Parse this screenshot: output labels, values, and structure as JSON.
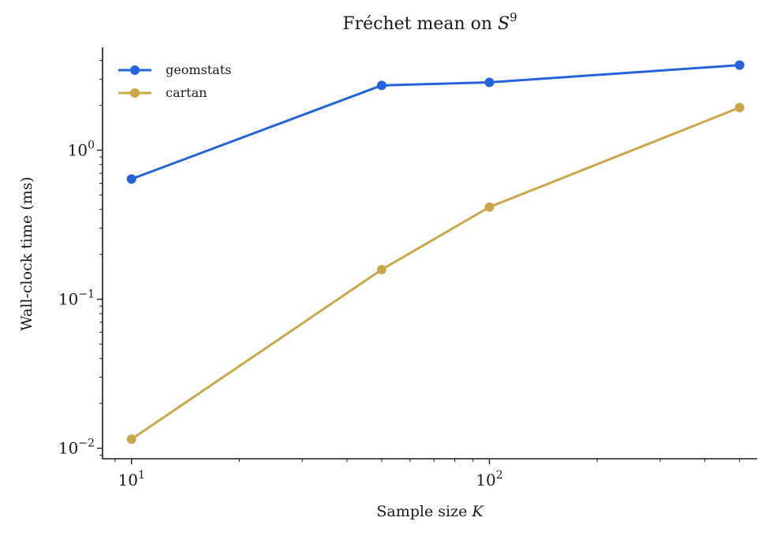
{
  "chart_data": {
    "type": "line",
    "title": "Fréchet mean on S⁹",
    "title_parts": {
      "text": "Fréchet mean on ",
      "math": "S",
      "sup": "9"
    },
    "xlabel": "Sample size K",
    "xlabel_parts": {
      "text": "Sample size ",
      "math": "K"
    },
    "ylabel": "Wall-clock time (ms)",
    "x_scale": "log",
    "y_scale": "log",
    "xlim": [
      8.3,
      560
    ],
    "ylim": [
      0.0085,
      4.9
    ],
    "x_ticks": [
      {
        "value": 10,
        "base": "10",
        "exp": "1"
      },
      {
        "value": 100,
        "base": "10",
        "exp": "2"
      }
    ],
    "y_ticks": [
      {
        "value": 0.01,
        "base": "10",
        "exp": "−2"
      },
      {
        "value": 0.1,
        "base": "10",
        "exp": "−1"
      },
      {
        "value": 1,
        "base": "10",
        "exp": "0"
      }
    ],
    "grid": false,
    "legend_position": "top-left",
    "x": [
      10,
      50,
      100,
      500
    ],
    "series": [
      {
        "name": "geomstats",
        "color": "#2563DC",
        "values": [
          0.64,
          2.72,
          2.85,
          3.72
        ]
      },
      {
        "name": "cartan",
        "color": "#C9A84C",
        "values": [
          0.0115,
          0.158,
          0.415,
          1.93
        ]
      }
    ]
  }
}
